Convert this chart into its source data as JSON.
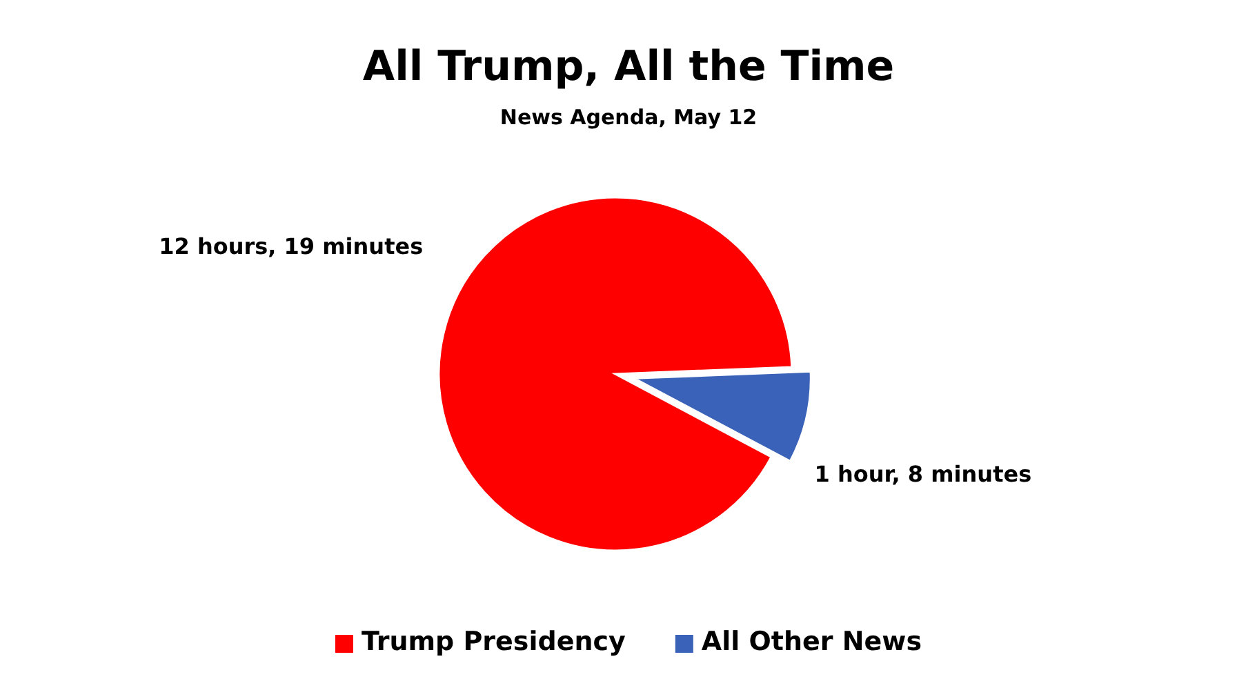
{
  "chart_data": {
    "type": "pie",
    "title": "All Trump, All the Time",
    "subtitle": "News Agenda, May 12",
    "categories": [
      "Trump Presidency",
      "All Other News"
    ],
    "values": [
      91.6,
      8.4
    ],
    "annotations": [
      "12 hours, 19 minutes",
      "1 hour, 8 minutes"
    ],
    "colors": [
      "#ff0000",
      "#3a62b8"
    ],
    "legend": "bottom"
  }
}
